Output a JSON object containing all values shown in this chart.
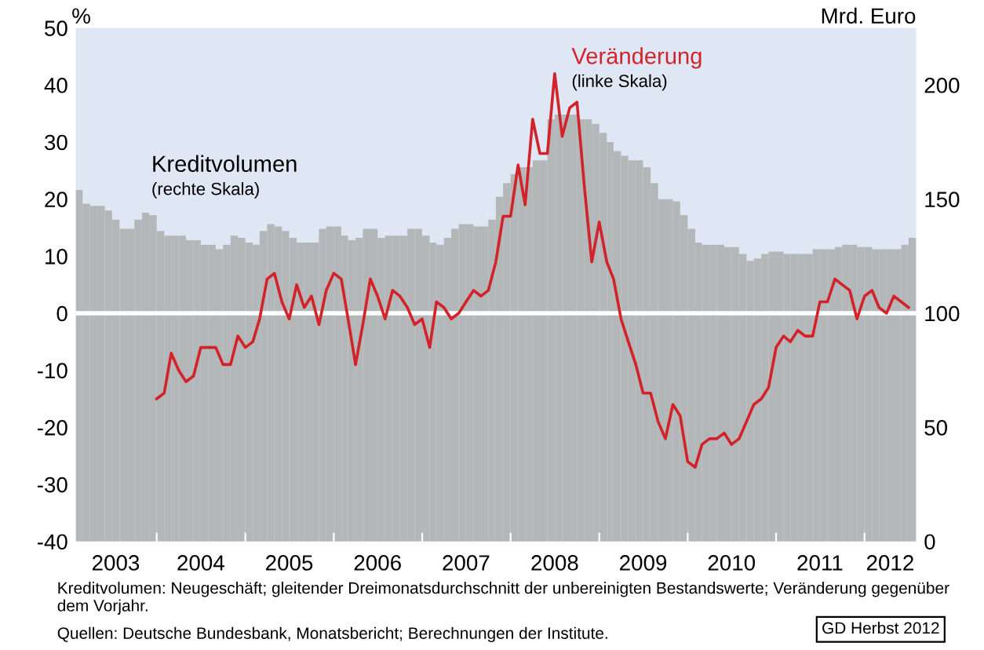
{
  "chart_data": {
    "type": "bar",
    "ylabel": "%",
    "y2label": "Mrd. Euro",
    "x": [
      "2003-02",
      "2003-03",
      "2003-04",
      "2003-05",
      "2003-06",
      "2003-07",
      "2003-08",
      "2003-09",
      "2003-10",
      "2003-11",
      "2003-12",
      "2004-01",
      "2004-02",
      "2004-03",
      "2004-04",
      "2004-05",
      "2004-06",
      "2004-07",
      "2004-08",
      "2004-09",
      "2004-10",
      "2004-11",
      "2004-12",
      "2005-01",
      "2005-02",
      "2005-03",
      "2005-04",
      "2005-05",
      "2005-06",
      "2005-07",
      "2005-08",
      "2005-09",
      "2005-10",
      "2005-11",
      "2005-12",
      "2006-01",
      "2006-02",
      "2006-03",
      "2006-04",
      "2006-05",
      "2006-06",
      "2006-07",
      "2006-08",
      "2006-09",
      "2006-10",
      "2006-11",
      "2006-12",
      "2007-01",
      "2007-02",
      "2007-03",
      "2007-04",
      "2007-05",
      "2007-06",
      "2007-07",
      "2007-08",
      "2007-09",
      "2007-10",
      "2007-11",
      "2007-12",
      "2008-01",
      "2008-02",
      "2008-03",
      "2008-04",
      "2008-05",
      "2008-06",
      "2008-07",
      "2008-08",
      "2008-09",
      "2008-10",
      "2008-11",
      "2008-12",
      "2009-01",
      "2009-02",
      "2009-03",
      "2009-04",
      "2009-05",
      "2009-06",
      "2009-07",
      "2009-08",
      "2009-09",
      "2009-10",
      "2009-11",
      "2009-12",
      "2010-01",
      "2010-02",
      "2010-03",
      "2010-04",
      "2010-05",
      "2010-06",
      "2010-07",
      "2010-08",
      "2010-09",
      "2010-10",
      "2010-11",
      "2010-12",
      "2011-01",
      "2011-02",
      "2011-03",
      "2011-04",
      "2011-05",
      "2011-06",
      "2011-07",
      "2011-08",
      "2011-09",
      "2011-10",
      "2011-11",
      "2011-12",
      "2012-01",
      "2012-02",
      "2012-03",
      "2012-04",
      "2012-05",
      "2012-06",
      "2012-07"
    ],
    "series": [
      {
        "name": "Kreditvolumen",
        "axis": "y2",
        "color": "#b4b7b8",
        "values": [
          154,
          148,
          147,
          147,
          145,
          141,
          137,
          137,
          141,
          144,
          143,
          136,
          134,
          134,
          134,
          132,
          132,
          130,
          130,
          128,
          130,
          134,
          133,
          131,
          130,
          136,
          139,
          138,
          136,
          133,
          131,
          131,
          131,
          137,
          138,
          138,
          134,
          132,
          133,
          137,
          137,
          133,
          134,
          134,
          134,
          137,
          137,
          134,
          131,
          130,
          133,
          137,
          139,
          139,
          138,
          138,
          141,
          151,
          157,
          161,
          164,
          164,
          167,
          167,
          185,
          187,
          187,
          187,
          185,
          185,
          183,
          179,
          175,
          171,
          169,
          167,
          167,
          164,
          157,
          150,
          150,
          149,
          143,
          137,
          131,
          130,
          130,
          130,
          129,
          129,
          126,
          123,
          124,
          126,
          127,
          127,
          126,
          126,
          126,
          126,
          128,
          128,
          128,
          129,
          130,
          130,
          129,
          129,
          128,
          128,
          128,
          128,
          130,
          133
        ]
      },
      {
        "name": "Veränderung",
        "type": "line",
        "axis": "y",
        "color": "#d2232a",
        "values": [
          null,
          null,
          null,
          null,
          null,
          null,
          null,
          null,
          null,
          null,
          null,
          -15,
          -14,
          -7,
          -10,
          -12,
          -11,
          -6,
          -6,
          -6,
          -9,
          -9,
          -4,
          -6,
          -5,
          -1,
          6,
          7,
          2,
          -1,
          5,
          1,
          3,
          -2,
          4,
          7,
          6,
          -1,
          -9,
          -2,
          6,
          3,
          -1,
          4,
          3,
          1,
          -2,
          -1,
          -6,
          2,
          1,
          -1,
          0,
          2,
          4,
          3,
          4,
          9,
          17,
          17,
          26,
          19,
          34,
          28,
          28,
          42,
          31,
          36,
          37,
          22,
          9,
          16,
          9,
          6,
          -1,
          -5,
          -9,
          -14,
          -14,
          -19,
          -22,
          -16,
          -18,
          -26,
          -27,
          -23,
          -22,
          -22,
          -21,
          -23,
          -22,
          -19,
          -16,
          -15,
          -13,
          -6,
          -4,
          -5,
          -3,
          -4,
          -4,
          2,
          2,
          6,
          5,
          4,
          -1,
          3,
          4,
          1,
          0,
          3,
          2,
          1
        ]
      }
    ],
    "xlim": [
      "2003-02-01",
      "2012-08-01"
    ],
    "xticks": [
      {
        "value": "2004-01-01",
        "label": null
      },
      {
        "value": "2005-01-01",
        "label": null
      },
      {
        "value": "2006-01-01",
        "label": null
      },
      {
        "value": "2007-01-01",
        "label": null
      },
      {
        "value": "2008-01-01",
        "label": null
      },
      {
        "value": "2009-01-01",
        "label": null
      },
      {
        "value": "2010-01-01",
        "label": null
      },
      {
        "value": "2011-01-01",
        "label": null
      },
      {
        "value": "2012-01-01",
        "label": null
      },
      {
        "value": "2003-07-16",
        "label": "2003"
      },
      {
        "value": "2004-07-01",
        "label": "2004"
      },
      {
        "value": "2005-07-01",
        "label": "2005"
      },
      {
        "value": "2006-07-01",
        "label": "2006"
      },
      {
        "value": "2007-07-01",
        "label": "2007"
      },
      {
        "value": "2008-07-01",
        "label": "2008"
      },
      {
        "value": "2009-07-01",
        "label": "2009"
      },
      {
        "value": "2010-07-01",
        "label": "2010"
      },
      {
        "value": "2011-07-01",
        "label": "2011"
      },
      {
        "value": "2012-04-16",
        "label": "2012"
      }
    ],
    "ylim": [
      -40,
      50
    ],
    "yticks": [
      -40,
      -30,
      -20,
      -10,
      0,
      10,
      20,
      30,
      40,
      50
    ],
    "y2lim": [
      0,
      225
    ],
    "y2ticks": [
      0,
      50,
      100,
      150,
      200
    ],
    "ref_lines": [
      {
        "axis": "y",
        "value": 0,
        "color": "#ffffff",
        "line_style": "solid"
      }
    ],
    "grid": false,
    "legend": false,
    "annotations": [
      "(rechte Skala)",
      "(linke Skala)",
      "Kreditvolumen: Neugeschäft; gleitender Dreimonatsdurchschnitt der unbereinigten Bestandswerte; Veränderung gegenüber dem Vorjahr.",
      "Quellen: Deutsche Bundesbank, Monatsbericht; Berechnungen der Institute.",
      "GD Herbst 2012"
    ]
  }
}
